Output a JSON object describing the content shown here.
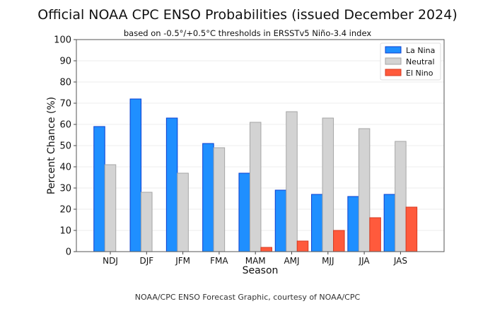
{
  "chart_data": {
    "type": "bar",
    "title": "Official NOAA CPC ENSO Probabilities (issued December 2024)",
    "subtitle": "based on -0.5°/+0.5°C thresholds in ERSSTv5 Niño-3.4 index",
    "xlabel": "Season",
    "ylabel": "Percent Chance (%)",
    "ylim": [
      0,
      100
    ],
    "yticks": [
      0,
      10,
      20,
      30,
      40,
      50,
      60,
      70,
      80,
      90,
      100
    ],
    "grid": true,
    "legend_position": "top-right",
    "categories": [
      "NDJ",
      "DJF",
      "JFM",
      "FMA",
      "MAM",
      "AMJ",
      "MJJ",
      "JJA",
      "JAS"
    ],
    "series": [
      {
        "name": "La Nina",
        "color": "#1f8fff",
        "edge": "#0b3fd0",
        "values": [
          59,
          72,
          63,
          51,
          37,
          29,
          27,
          26,
          27
        ]
      },
      {
        "name": "Neutral",
        "color": "#d3d3d3",
        "edge": "#a6a6a6",
        "values": [
          41,
          28,
          37,
          49,
          61,
          66,
          63,
          58,
          52
        ]
      },
      {
        "name": "El Nino",
        "color": "#ff5a3c",
        "edge": "#d63a20",
        "values": [
          0,
          0,
          0,
          0,
          2,
          5,
          10,
          16,
          21
        ]
      }
    ]
  },
  "footer": {
    "credit": "NOAA/CPC ENSO Forecast Graphic, courtesy of NOAA/CPC"
  }
}
